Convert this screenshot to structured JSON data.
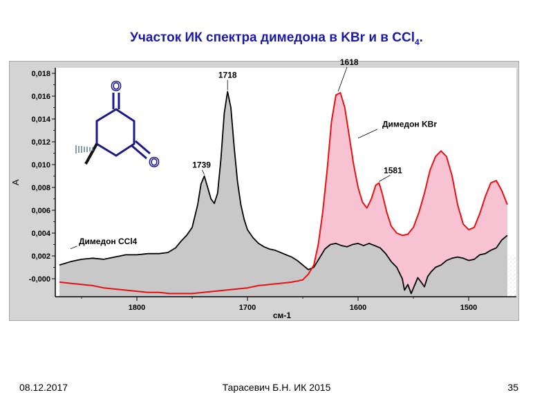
{
  "slide": {
    "title_main": "Участок ИК спектра димедона в KBr  и в CCl",
    "title_sub": "4",
    "title_end": ".",
    "footer_date": "08.12.2017",
    "footer_author": "Тарасевич Б.Н.   ИК 2015",
    "footer_page": "35"
  },
  "chart_data": {
    "type": "line",
    "xlabel": "см-1",
    "ylabel": "A",
    "xlim": [
      1870,
      1465
    ],
    "ylim": [
      -0.0015,
      0.0185
    ],
    "x_ticks": [
      1800,
      1700,
      1600,
      1500
    ],
    "x_tick_labels": [
      "1800",
      "1700",
      "1600",
      "1500"
    ],
    "y_ticks": [
      0.0,
      0.002,
      0.004,
      0.006,
      0.008,
      0.01,
      0.012,
      0.014,
      0.016,
      0.018
    ],
    "y_tick_labels": [
      "-0,000",
      "0,002",
      "0,004",
      "0,006",
      "0,008",
      "0,010",
      "0,012",
      "0,014",
      "0,016",
      "0,018"
    ],
    "grid": false,
    "series": [
      {
        "name": "Димедон CCl4",
        "color": "#000000",
        "fill": "#c8c8c8",
        "x": [
          1870,
          1860,
          1850,
          1840,
          1830,
          1820,
          1810,
          1800,
          1790,
          1780,
          1772,
          1765,
          1760,
          1755,
          1750,
          1745,
          1742,
          1739,
          1736,
          1733,
          1730,
          1727,
          1724,
          1721,
          1718,
          1715,
          1712,
          1709,
          1706,
          1703,
          1700,
          1695,
          1690,
          1685,
          1680,
          1675,
          1670,
          1665,
          1660,
          1655,
          1650,
          1645,
          1640,
          1635,
          1630,
          1625,
          1620,
          1615,
          1610,
          1605,
          1600,
          1595,
          1590,
          1585,
          1580,
          1575,
          1570,
          1565,
          1560,
          1558,
          1555,
          1552,
          1549,
          1546,
          1543,
          1540,
          1537,
          1534,
          1530,
          1525,
          1520,
          1515,
          1510,
          1505,
          1500,
          1495,
          1490,
          1485,
          1480,
          1475,
          1470,
          1465
        ],
        "y": [
          0.0012,
          0.0015,
          0.0017,
          0.0018,
          0.0017,
          0.0019,
          0.0021,
          0.0021,
          0.0022,
          0.0022,
          0.0023,
          0.0027,
          0.0033,
          0.0038,
          0.0045,
          0.0065,
          0.0083,
          0.009,
          0.008,
          0.007,
          0.0066,
          0.0075,
          0.0105,
          0.0145,
          0.0164,
          0.015,
          0.0115,
          0.0085,
          0.0065,
          0.0052,
          0.0043,
          0.0036,
          0.0031,
          0.0028,
          0.0026,
          0.0025,
          0.0023,
          0.0021,
          0.0019,
          0.0016,
          0.0012,
          0.0008,
          0.001,
          0.0018,
          0.0026,
          0.003,
          0.0031,
          0.0029,
          0.0028,
          0.003,
          0.0031,
          0.0029,
          0.0031,
          0.0029,
          0.0027,
          0.0022,
          0.0015,
          0.001,
          0.0,
          -0.001,
          -0.0005,
          -0.0013,
          -0.0006,
          0.0001,
          -0.0003,
          -0.0007,
          0.0002,
          0.0006,
          0.001,
          0.0012,
          0.0016,
          0.0018,
          0.0019,
          0.0018,
          0.0016,
          0.0017,
          0.0021,
          0.0022,
          0.0025,
          0.0027,
          0.0034,
          0.0038
        ]
      },
      {
        "name": "Димедон KBr",
        "color": "#e81010",
        "fill": "#f7c2d2",
        "x": [
          1870,
          1860,
          1850,
          1840,
          1830,
          1820,
          1810,
          1800,
          1790,
          1780,
          1770,
          1760,
          1750,
          1740,
          1730,
          1720,
          1710,
          1700,
          1690,
          1680,
          1670,
          1660,
          1655,
          1650,
          1645,
          1640,
          1636,
          1632,
          1628,
          1624,
          1620,
          1616,
          1612,
          1608,
          1604,
          1600,
          1596,
          1592,
          1588,
          1584,
          1581,
          1578,
          1574,
          1570,
          1565,
          1560,
          1555,
          1550,
          1545,
          1540,
          1535,
          1530,
          1525,
          1520,
          1515,
          1510,
          1505,
          1500,
          1495,
          1490,
          1485,
          1480,
          1475,
          1470,
          1465
        ],
        "y": [
          -0.0003,
          -0.0004,
          -0.0005,
          -0.0006,
          -0.0008,
          -0.0009,
          -0.001,
          -0.0011,
          -0.0012,
          -0.0012,
          -0.0013,
          -0.0013,
          -0.0013,
          -0.0012,
          -0.0011,
          -0.001,
          -0.0009,
          -0.0008,
          -0.0006,
          -0.0005,
          -0.0004,
          -0.0003,
          -0.0002,
          -0.0001,
          0.0004,
          0.0012,
          0.003,
          0.0058,
          0.0095,
          0.0138,
          0.0161,
          0.0163,
          0.015,
          0.0125,
          0.01,
          0.008,
          0.0067,
          0.0062,
          0.007,
          0.0082,
          0.0084,
          0.0074,
          0.0058,
          0.0046,
          0.004,
          0.0038,
          0.0039,
          0.0045,
          0.0058,
          0.0075,
          0.0095,
          0.0107,
          0.0112,
          0.0107,
          0.009,
          0.0065,
          0.0048,
          0.0043,
          0.0045,
          0.0057,
          0.0072,
          0.0084,
          0.0086,
          0.0077,
          0.0065
        ]
      }
    ],
    "annotations": [
      {
        "text": "1718",
        "x": 1718,
        "y": 0.0164
      },
      {
        "text": "1739",
        "x": 1739,
        "y": 0.009
      },
      {
        "text": "1618",
        "x": 1618,
        "y": 0.0163
      },
      {
        "text": "1581",
        "x": 1581,
        "y": 0.0084
      },
      {
        "text": "Димедон KBr",
        "x": 1600,
        "y": 0.0122
      },
      {
        "text": "Димедон CCl4",
        "x": 1860,
        "y": 0.0025
      }
    ]
  },
  "molecule": {
    "atom_o_top": "O",
    "atom_o_right": "O"
  }
}
